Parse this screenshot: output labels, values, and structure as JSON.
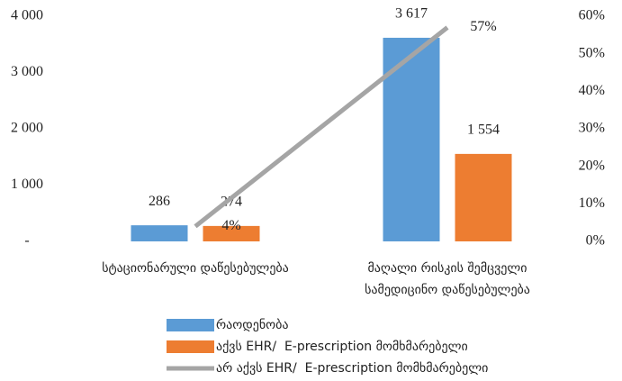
{
  "chart_data": {
    "type": "bar-line",
    "categories": [
      "სტაციონარული დაწესებულება",
      "მაღალი რისკის შემცველი სამედიცინო დაწესებულება"
    ],
    "series": [
      {
        "name": "რაოდენობა",
        "type": "bar",
        "color": "#5b9bd5",
        "values": [
          286,
          3617
        ],
        "value_labels": [
          "286",
          "3 617"
        ]
      },
      {
        "name": "აქვს EHR/  E-prescription მომხმარებელი",
        "type": "bar",
        "color": "#ed7d31",
        "values": [
          274,
          1554
        ],
        "value_labels": [
          "274",
          "1 554"
        ]
      },
      {
        "name": "არ აქვს EHR/  E-prescription მომხმარებელი",
        "type": "line",
        "axis": "y2",
        "color": "#a5a5a5",
        "values": [
          4,
          57
        ],
        "value_labels": [
          "4%",
          "57%"
        ]
      }
    ],
    "ylim": [
      0,
      4000
    ],
    "yticks": [
      {
        "value": 0,
        "label": "-"
      },
      {
        "value": 1000,
        "label": "1 000"
      },
      {
        "value": 2000,
        "label": "2 000"
      },
      {
        "value": 3000,
        "label": "3 000"
      },
      {
        "value": 4000,
        "label": "4 000"
      }
    ],
    "y2lim": [
      0,
      60
    ],
    "y2ticks": [
      {
        "value": 0,
        "label": "0%"
      },
      {
        "value": 10,
        "label": "10%"
      },
      {
        "value": 20,
        "label": "20%"
      },
      {
        "value": 30,
        "label": "30%"
      },
      {
        "value": 40,
        "label": "40%"
      },
      {
        "value": 50,
        "label": "50%"
      },
      {
        "value": 60,
        "label": "60%"
      }
    ],
    "grid": false,
    "legend": "bottom"
  }
}
